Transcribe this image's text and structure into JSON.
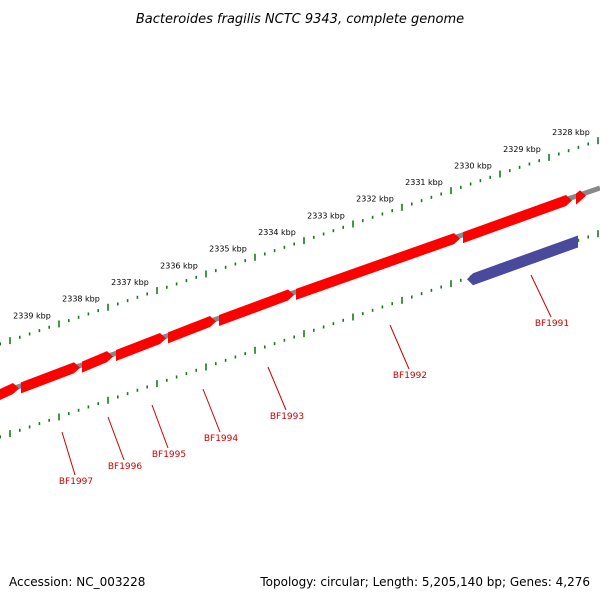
{
  "title": "Bacteroides fragilis NCTC 9343, complete genome",
  "footer": {
    "accession": "Accession: NC_003228",
    "summary": "Topology: circular; Length: 5,205,140 bp; Genes: 4,276"
  },
  "colors": {
    "backbone": "#888888",
    "forward_gene": "#ff0000",
    "reverse_gene": "#4a4a9c",
    "ticks": "#1a7a1a",
    "label": "#cc0000"
  },
  "scale": {
    "unit": "kbp",
    "labels": [
      {
        "kbp": 2328,
        "text": "2328 kbp"
      },
      {
        "kbp": 2329,
        "text": "2329 kbp"
      },
      {
        "kbp": 2330,
        "text": "2330 kbp"
      },
      {
        "kbp": 2331,
        "text": "2331 kbp"
      },
      {
        "kbp": 2332,
        "text": "2332 kbp"
      },
      {
        "kbp": 2333,
        "text": "2333 kbp"
      },
      {
        "kbp": 2334,
        "text": "2334 kbp"
      },
      {
        "kbp": 2335,
        "text": "2335 kbp"
      },
      {
        "kbp": 2336,
        "text": "2336 kbp"
      },
      {
        "kbp": 2337,
        "text": "2337 kbp"
      },
      {
        "kbp": 2338,
        "text": "2338 kbp"
      },
      {
        "kbp": 2339,
        "text": "2339 kbp"
      }
    ]
  },
  "genes": [
    {
      "name": "BF1991",
      "strand": "reverse"
    },
    {
      "name": "BF1992",
      "strand": "forward"
    },
    {
      "name": "BF1993",
      "strand": "forward"
    },
    {
      "name": "BF1994",
      "strand": "forward"
    },
    {
      "name": "BF1995",
      "strand": "forward"
    },
    {
      "name": "BF1996",
      "strand": "forward"
    },
    {
      "name": "BF1997",
      "strand": "forward"
    }
  ]
}
